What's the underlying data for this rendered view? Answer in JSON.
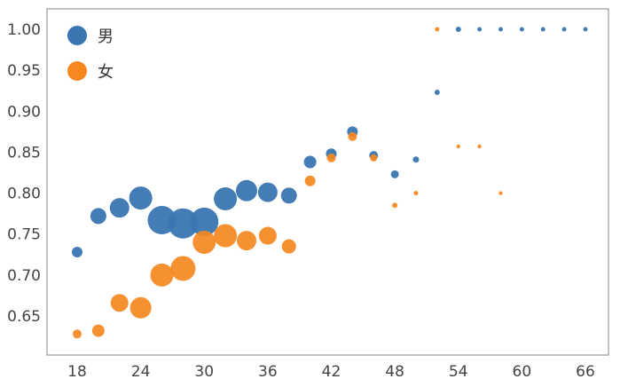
{
  "chart_data": {
    "type": "scatter",
    "title": "",
    "xlabel": "",
    "ylabel": "",
    "xlim": [
      15,
      68
    ],
    "ylim": [
      0.61,
      1.025
    ],
    "xticks": [
      18,
      24,
      30,
      36,
      42,
      48,
      54,
      60,
      66
    ],
    "yticks": [
      0.65,
      0.7,
      0.75,
      0.8,
      0.85,
      0.9,
      0.95,
      1.0
    ],
    "ytick_labels": [
      "0.65",
      "0.70",
      "0.75",
      "0.80",
      "0.85",
      "0.90",
      "0.95",
      "1.00"
    ],
    "grid": false,
    "legend_position": "top-left",
    "marker_size_note": "bubble size varies per point",
    "series": [
      {
        "name": "男",
        "color": "#3a76b1",
        "x": [
          18,
          20,
          22,
          24,
          26,
          28,
          30,
          32,
          34,
          36,
          38,
          40,
          42,
          44,
          46,
          48,
          50,
          52,
          54,
          56,
          58,
          60,
          62,
          64,
          66
        ],
        "y": [
          0.728,
          0.772,
          0.782,
          0.794,
          0.767,
          0.763,
          0.765,
          0.793,
          0.803,
          0.801,
          0.797,
          0.838,
          0.848,
          0.875,
          0.846,
          0.823,
          0.841,
          0.923,
          1.0,
          1.0,
          1.0,
          1.0,
          1.0,
          1.0,
          1.0
        ],
        "size": [
          6,
          9,
          11,
          13,
          16,
          17,
          16,
          13,
          12,
          11,
          9,
          7,
          6,
          6,
          5,
          4.5,
          3.5,
          3,
          3,
          2.5,
          2.5,
          2.5,
          2.5,
          2.5,
          2.5
        ]
      },
      {
        "name": "女",
        "color": "#f5881f",
        "x": [
          18,
          20,
          22,
          24,
          26,
          28,
          30,
          32,
          34,
          36,
          38,
          40,
          42,
          44,
          46,
          48,
          50,
          52,
          54,
          56,
          58
        ],
        "y": [
          0.628,
          0.632,
          0.666,
          0.66,
          0.7,
          0.708,
          0.74,
          0.748,
          0.742,
          0.748,
          0.735,
          0.815,
          0.843,
          0.869,
          0.843,
          0.785,
          0.8,
          1.0,
          0.857,
          0.857,
          0.8
        ],
        "size": [
          5,
          7,
          10,
          12,
          13,
          14,
          13,
          13,
          11,
          10,
          8,
          6,
          5,
          5,
          4,
          3,
          2.5,
          2.5,
          2.2,
          2.2,
          2.2
        ]
      }
    ]
  }
}
